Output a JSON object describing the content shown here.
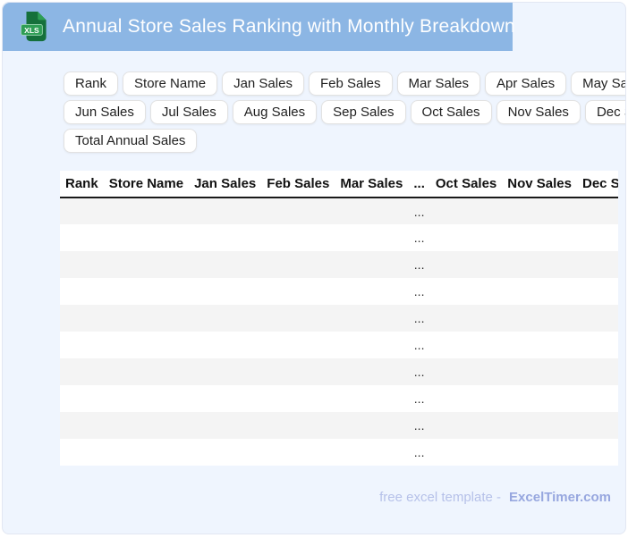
{
  "title_bar": {
    "icon_text": "XLS",
    "title": "Annual Store Sales Ranking with Monthly Breakdown"
  },
  "chips": {
    "labels": [
      "Rank",
      "Store Name",
      "Jan Sales",
      "Feb Sales",
      "Mar Sales",
      "Apr Sales",
      "May Sales",
      "Jun Sales",
      "Jul Sales",
      "Aug Sales",
      "Sep Sales",
      "Oct Sales",
      "Nov Sales",
      "Dec Sales",
      "Total Annual Sales"
    ],
    "per_row": [
      7,
      7,
      1
    ]
  },
  "table": {
    "headers": [
      "Rank",
      "Store Name",
      "Jan Sales",
      "Feb Sales",
      "Mar Sales",
      "...",
      "Oct Sales",
      "Nov Sales",
      "Dec Sales"
    ],
    "ellipsis_column_index": 5,
    "row_count": 10,
    "row_placeholder": "..."
  },
  "footer": {
    "prefix_label": "free excel template -",
    "brand_label": "ExcelTimer.com"
  },
  "colors": {
    "header_bg": "#8CB6E4",
    "page_bg": "#EFF5FE",
    "file_icon_green": "#15703B",
    "badge_green": "#2E9E55",
    "row_stripe": "#F4F4F4",
    "header_rule": "#1A1A1A",
    "footer_text": "#B6C1E9",
    "footer_brand": "#97A7DF"
  }
}
